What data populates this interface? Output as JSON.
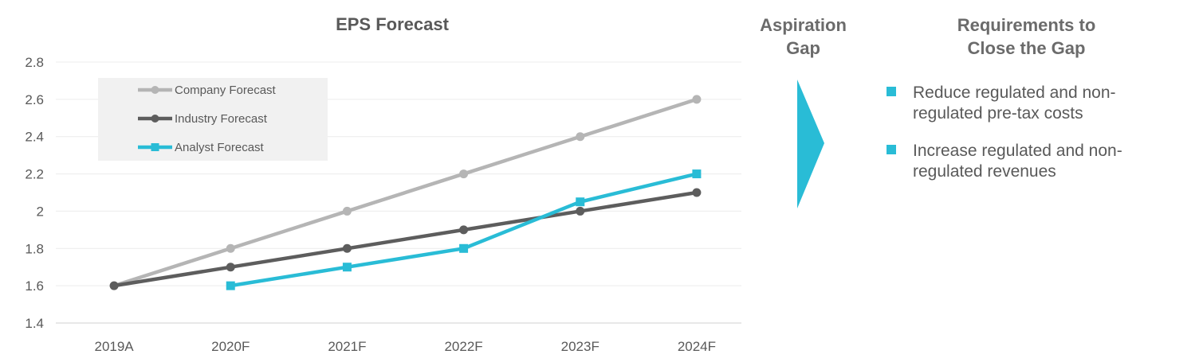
{
  "chart_data": {
    "type": "line",
    "title": "EPS Forecast",
    "categories": [
      "2019A",
      "2020F",
      "2021F",
      "2022F",
      "2023F",
      "2024F"
    ],
    "ylim": [
      1.4,
      2.8
    ],
    "yticks": [
      "1.4",
      "1.6",
      "1.8",
      "2",
      "2.2",
      "2.4",
      "2.6",
      "2.8"
    ],
    "grid": true,
    "legend_position": "top-left",
    "series": [
      {
        "name": "Company Forecast",
        "color": "#b5b5b5",
        "marker": "circle",
        "values": [
          1.6,
          1.8,
          2.0,
          2.2,
          2.4,
          2.6
        ]
      },
      {
        "name": "Industry Forecast",
        "color": "#5d5d5d",
        "marker": "circle",
        "values": [
          1.6,
          1.7,
          1.8,
          1.9,
          2.0,
          2.1
        ]
      },
      {
        "name": "Analyst Forecast",
        "color": "#29bcd6",
        "marker": "square",
        "values": [
          null,
          1.6,
          1.7,
          1.8,
          2.05,
          2.2
        ]
      }
    ]
  },
  "aspiration": {
    "title_line1": "Aspiration",
    "title_line2": "Gap",
    "arrow_color": "#29bcd6"
  },
  "requirements": {
    "title_line1": "Requirements to",
    "title_line2": "Close the Gap",
    "bullet_color": "#29bcd6",
    "items": [
      {
        "line1": "Reduce regulated and non-",
        "line2": "regulated pre-tax costs"
      },
      {
        "line1": "Increase regulated and non-",
        "line2": "regulated revenues"
      }
    ]
  }
}
